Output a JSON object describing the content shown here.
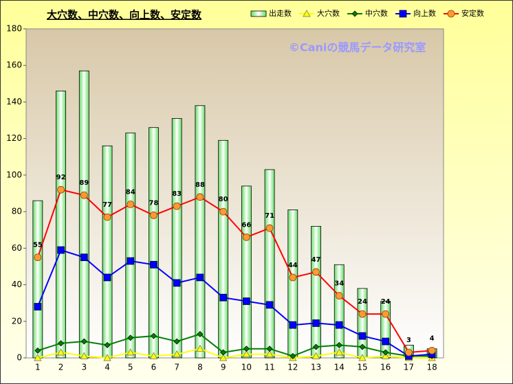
{
  "chart_data": {
    "type": "bar-line",
    "title": "大穴数、中穴数、向上数、安定数",
    "annotation": "©Caniの競馬データ研究室",
    "categories": [
      "1",
      "2",
      "3",
      "4",
      "5",
      "6",
      "7",
      "8",
      "9",
      "10",
      "11",
      "12",
      "13",
      "14",
      "15",
      "16",
      "17",
      "18"
    ],
    "series": [
      {
        "name": "出走数",
        "type": "bar",
        "color": "#33aa33",
        "values": [
          86,
          146,
          157,
          116,
          123,
          126,
          131,
          138,
          119,
          94,
          103,
          81,
          72,
          51,
          38,
          31,
          7,
          5
        ]
      },
      {
        "name": "大穴数",
        "type": "line",
        "marker": "triangle",
        "color": "#ffff00",
        "values": [
          0,
          3,
          1,
          0,
          3,
          1,
          2,
          5,
          0,
          2,
          2,
          0,
          1,
          3,
          0,
          1,
          0,
          0
        ]
      },
      {
        "name": "中穴数",
        "type": "line",
        "marker": "diamond",
        "color": "#008000",
        "values": [
          4,
          8,
          9,
          7,
          11,
          12,
          9,
          13,
          3,
          5,
          5,
          1,
          6,
          7,
          6,
          3,
          1,
          1
        ]
      },
      {
        "name": "向上数",
        "type": "line",
        "marker": "square",
        "color": "#0000ff",
        "values": [
          28,
          59,
          55,
          44,
          53,
          51,
          41,
          44,
          33,
          31,
          29,
          18,
          19,
          18,
          12,
          9,
          1,
          2
        ]
      },
      {
        "name": "安定数",
        "type": "line",
        "marker": "circle",
        "color": "#ff0000",
        "marker_color": "#ff9933",
        "data_labels": true,
        "values": [
          55,
          92,
          89,
          77,
          84,
          78,
          83,
          88,
          80,
          66,
          71,
          44,
          47,
          34,
          24,
          24,
          3,
          4
        ]
      }
    ],
    "ylim": [
      0,
      180
    ],
    "yticks": [
      0,
      20,
      40,
      60,
      80,
      100,
      120,
      140,
      160,
      180
    ]
  }
}
